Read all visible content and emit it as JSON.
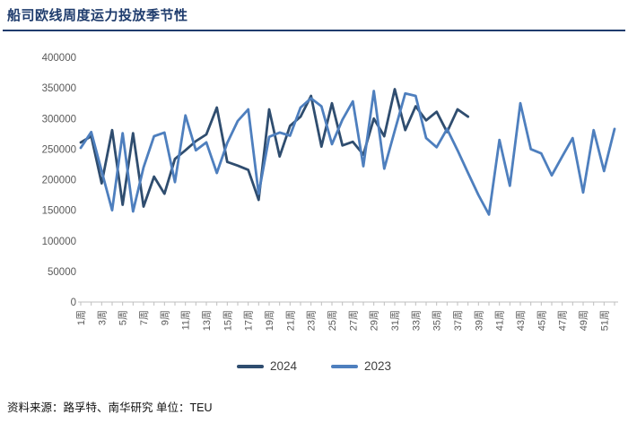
{
  "header": {
    "title": "船司欧线周度运力投放季节性",
    "accent_color": "#1f3c6d"
  },
  "chart_data": {
    "type": "line",
    "title": "船司欧线周度运力投放季节性",
    "unit": "TEU",
    "weeks": 52,
    "x_tick_labels": [
      "1周",
      "3周",
      "5周",
      "7周",
      "9周",
      "11周",
      "13周",
      "15周",
      "17周",
      "19周",
      "21周",
      "23周",
      "25周",
      "27周",
      "29周",
      "31周",
      "33周",
      "35周",
      "37周",
      "39周",
      "41周",
      "43周",
      "45周",
      "47周",
      "49周",
      "51周"
    ],
    "ylim": [
      0,
      400000
    ],
    "y_ticks": [
      0,
      50000,
      100000,
      150000,
      200000,
      250000,
      300000,
      350000,
      400000
    ],
    "grid": false,
    "legend_position": "bottom",
    "axis_color": "#bfbfbf",
    "label_color": "#595959",
    "series": [
      {
        "name": "2024",
        "color": "#2f4d6f",
        "start_week": 1,
        "values": [
          261000,
          271000,
          194000,
          281000,
          159000,
          276000,
          156000,
          205000,
          177000,
          234000,
          248000,
          263000,
          274000,
          318000,
          229000,
          223000,
          216000,
          167000,
          315000,
          238000,
          288000,
          303000,
          337000,
          254000,
          325000,
          256000,
          262000,
          241000,
          300000,
          271000,
          348000,
          281000,
          320000,
          297000,
          311000,
          278000,
          315000,
          303000
        ]
      },
      {
        "name": "2023",
        "color": "#4e7fbe",
        "start_week": 1,
        "values": [
          252000,
          278000,
          214000,
          150000,
          276000,
          148000,
          220000,
          271000,
          277000,
          196000,
          305000,
          248000,
          261000,
          211000,
          260000,
          296000,
          315000,
          177000,
          270000,
          277000,
          272000,
          318000,
          333000,
          320000,
          258000,
          298000,
          328000,
          222000,
          345000,
          218000,
          280000,
          341000,
          337000,
          268000,
          253000,
          283000,
          248000,
          211000,
          175000,
          143000,
          265000,
          190000,
          325000,
          250000,
          243000,
          207000,
          238000,
          268000,
          179000,
          281000,
          214000,
          283000
        ]
      }
    ]
  },
  "footer": {
    "source_label": "资料来源：路孚特、南华研究 单位：TEU"
  }
}
